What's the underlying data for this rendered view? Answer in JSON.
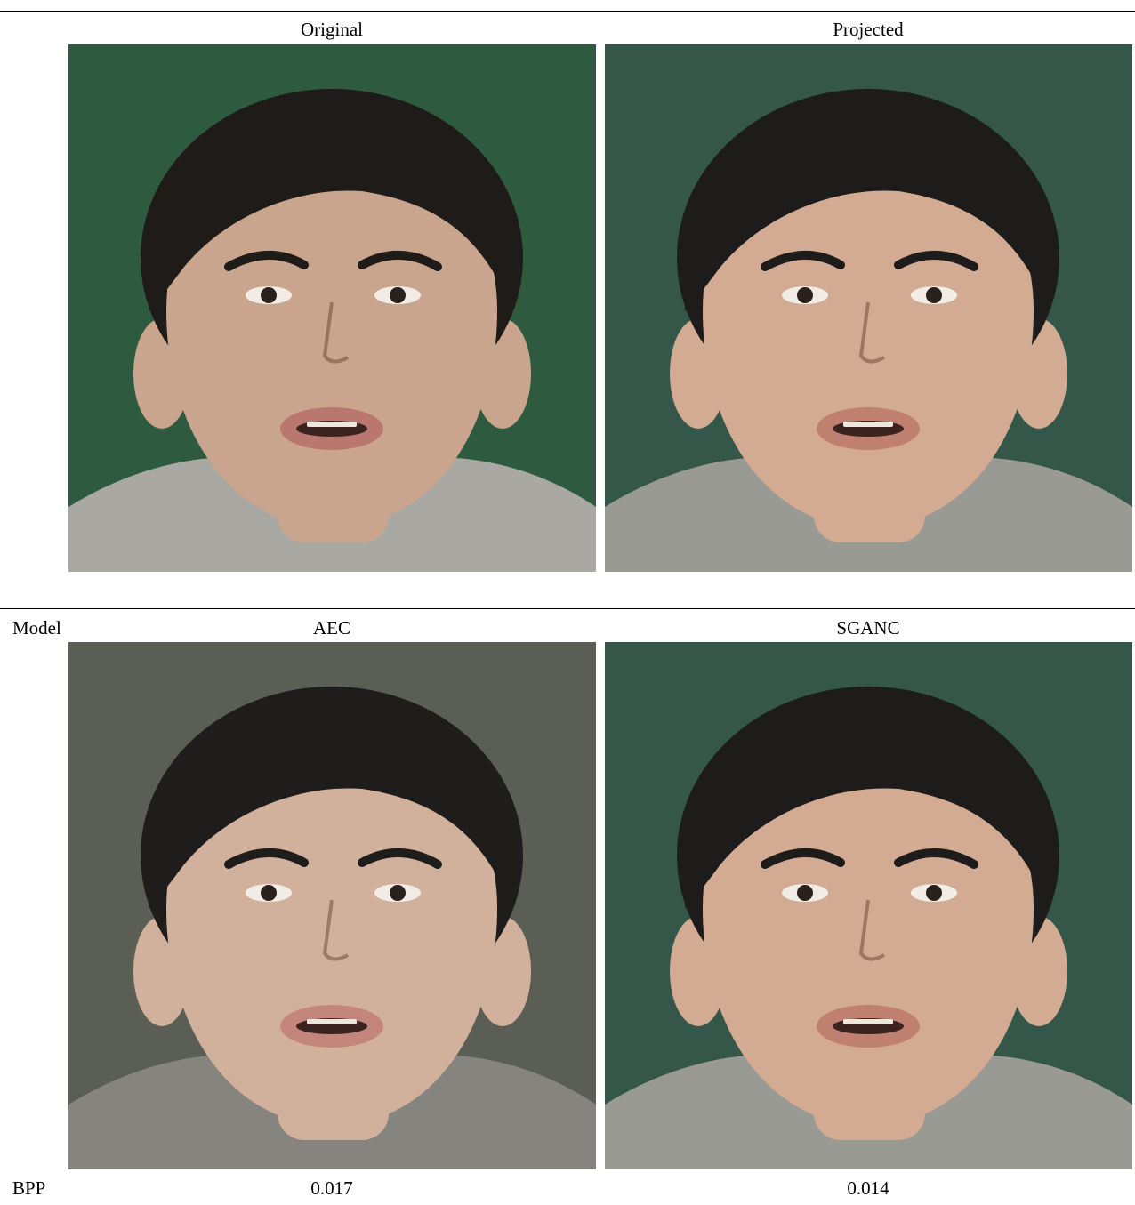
{
  "top": {
    "headers": [
      "Original",
      "Projected"
    ]
  },
  "bottom": {
    "row_label": "Model",
    "headers": [
      "AEC",
      "SGANC"
    ],
    "metric_label": "BPP",
    "metric_values": [
      "0.017",
      "0.014"
    ]
  },
  "panels": [
    {
      "name": "original-face-image",
      "bg": "#2e5a40",
      "skin": "#caa58e",
      "hair": "#1e1b19",
      "hood": "#a9a8a2",
      "lips": "#b9776f"
    },
    {
      "name": "projected-face-image",
      "bg": "#34574a",
      "skin": "#d2ab92",
      "hair": "#1d1c1a",
      "hood": "#9a9a95",
      "lips": "#c0806f"
    },
    {
      "name": "aec-face-image",
      "bg": "#5b5e55",
      "skin": "#d2b19c",
      "hair": "#1f1d1b",
      "hood": "#85847f",
      "lips": "#c4867c"
    },
    {
      "name": "sganc-face-image",
      "bg": "#34574a",
      "skin": "#d2ab92",
      "hair": "#1d1c1a",
      "hood": "#9a9a95",
      "lips": "#c0806f"
    }
  ]
}
